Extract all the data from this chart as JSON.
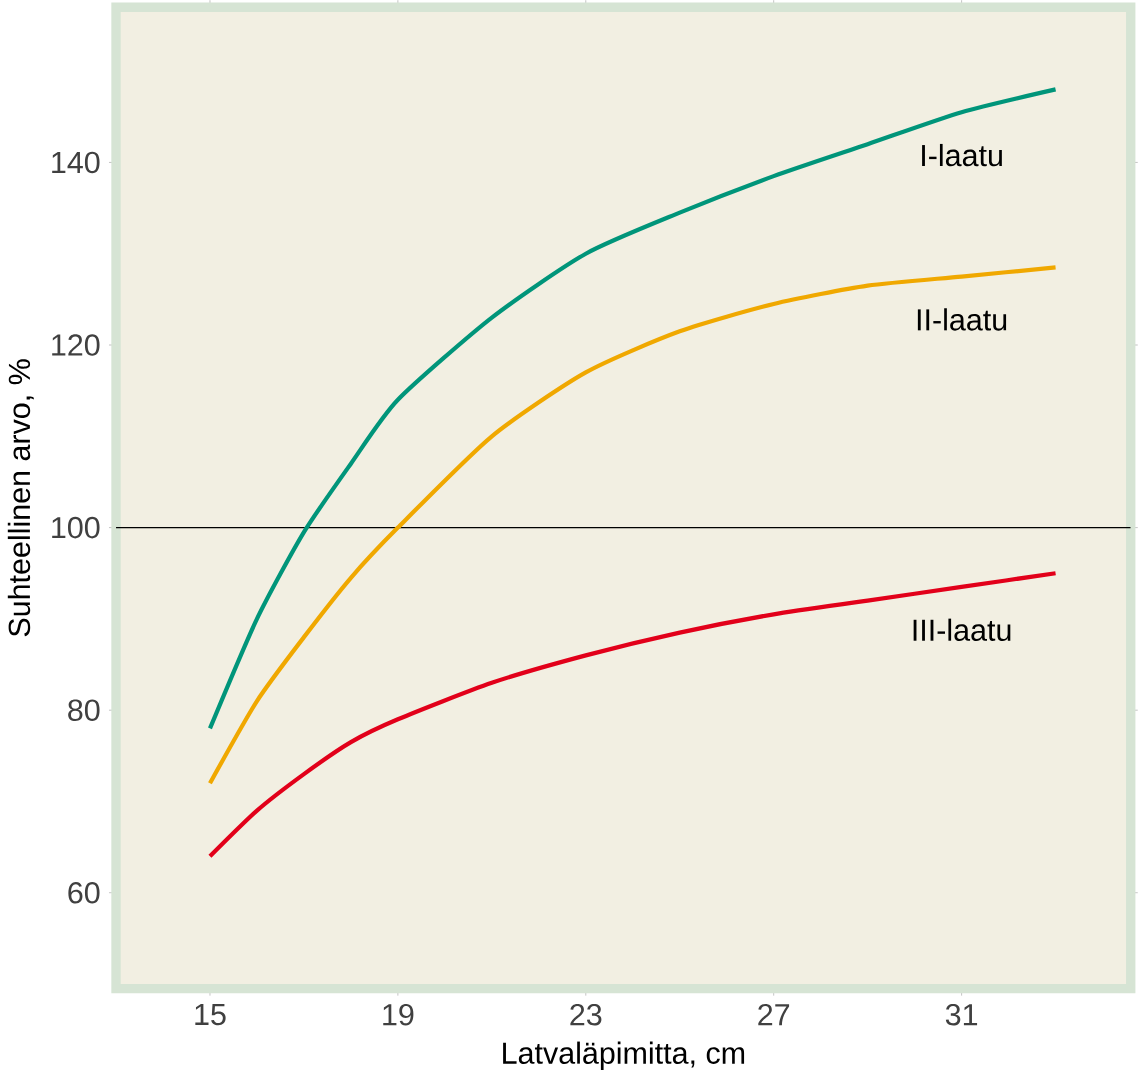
{
  "chart_data": {
    "type": "line",
    "xlabel": "Latvaläpimitta, cm",
    "ylabel": "Suhteellinen arvo, %",
    "x": [
      15,
      16,
      17,
      18,
      19,
      21,
      23,
      25,
      27,
      29,
      31,
      33
    ],
    "series": [
      {
        "name": "I-laatu",
        "color": "#00957a",
        "values": [
          78,
          90,
          99.5,
          107,
          114,
          123,
          130,
          134.5,
          138.5,
          142,
          145.5,
          148
        ]
      },
      {
        "name": "II-laatu",
        "color": "#f0a800",
        "values": [
          72,
          81,
          88,
          94.5,
          100,
          110,
          117,
          121.5,
          124.5,
          126.5,
          127.5,
          128.5
        ]
      },
      {
        "name": "III-laatu",
        "color": "#e2001a",
        "values": [
          64,
          69,
          73,
          76.5,
          79,
          83,
          86,
          88.5,
          90.5,
          92,
          93.5,
          95
        ]
      }
    ],
    "xlim": [
      13,
      34.6
    ],
    "ylim": [
      49.5,
      157
    ],
    "xticks": [
      15,
      19,
      23,
      27,
      31
    ],
    "yticks": [
      60,
      80,
      100,
      120,
      140
    ],
    "ref_lines": [
      {
        "axis": "y",
        "value": 100,
        "color": "#000000"
      }
    ],
    "marker": "none",
    "line_style": "solid"
  }
}
